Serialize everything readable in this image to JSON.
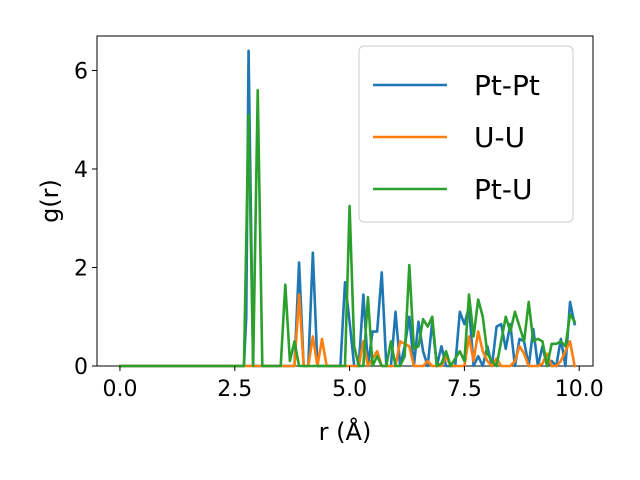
{
  "chart_data": {
    "type": "line",
    "title": "",
    "xlabel": "r (Å)",
    "ylabel": "g(r)",
    "xlim": [
      -0.5,
      10.3
    ],
    "ylim": [
      0,
      6.7
    ],
    "xticks": [
      0.0,
      2.5,
      5.0,
      7.5,
      10.0
    ],
    "xtick_labels": [
      "0.0",
      "2.5",
      "5.0",
      "7.5",
      "10.0"
    ],
    "yticks": [
      0,
      2,
      4,
      6
    ],
    "ytick_labels": [
      "0",
      "2",
      "4",
      "6"
    ],
    "grid": false,
    "legend_position": "top-right",
    "series": [
      {
        "name": "Pt-Pt",
        "color": "#1f77b4",
        "points": [
          [
            0.0,
            0
          ],
          [
            2.6,
            0
          ],
          [
            2.7,
            0
          ],
          [
            2.75,
            1.0
          ],
          [
            2.8,
            6.4
          ],
          [
            2.9,
            0
          ],
          [
            3.0,
            0
          ],
          [
            3.7,
            0
          ],
          [
            3.8,
            0
          ],
          [
            3.9,
            2.1
          ],
          [
            4.0,
            0
          ],
          [
            4.1,
            0
          ],
          [
            4.2,
            2.3
          ],
          [
            4.3,
            0
          ],
          [
            4.8,
            0
          ],
          [
            4.9,
            1.7
          ],
          [
            5.0,
            0.9
          ],
          [
            5.1,
            0
          ],
          [
            5.2,
            0
          ],
          [
            5.3,
            1.45
          ],
          [
            5.4,
            0
          ],
          [
            5.5,
            0.7
          ],
          [
            5.6,
            0.7
          ],
          [
            5.7,
            1.9
          ],
          [
            5.8,
            0
          ],
          [
            5.9,
            0
          ],
          [
            6.0,
            1.1
          ],
          [
            6.1,
            0
          ],
          [
            6.2,
            0.4
          ],
          [
            6.3,
            1.0
          ],
          [
            6.4,
            0
          ],
          [
            6.5,
            0.9
          ],
          [
            6.6,
            0.3
          ],
          [
            6.7,
            0
          ],
          [
            6.8,
            0.9
          ],
          [
            6.9,
            0
          ],
          [
            7.0,
            0.4
          ],
          [
            7.1,
            0
          ],
          [
            7.2,
            0
          ],
          [
            7.3,
            0
          ],
          [
            7.4,
            1.1
          ],
          [
            7.5,
            0.85
          ],
          [
            7.6,
            1.2
          ],
          [
            7.7,
            0
          ],
          [
            7.8,
            0.2
          ],
          [
            7.9,
            0
          ],
          [
            8.0,
            0.4
          ],
          [
            8.1,
            0
          ],
          [
            8.2,
            0.8
          ],
          [
            8.3,
            0.85
          ],
          [
            8.4,
            0.35
          ],
          [
            8.5,
            0.85
          ],
          [
            8.6,
            0
          ],
          [
            8.7,
            0.55
          ],
          [
            8.8,
            0.5
          ],
          [
            8.9,
            0
          ],
          [
            9.0,
            0.75
          ],
          [
            9.1,
            0
          ],
          [
            9.2,
            0.4
          ],
          [
            9.3,
            0
          ],
          [
            9.4,
            0.1
          ],
          [
            9.5,
            0
          ],
          [
            9.6,
            0.55
          ],
          [
            9.7,
            0
          ],
          [
            9.8,
            1.3
          ],
          [
            9.9,
            0.85
          ]
        ]
      },
      {
        "name": "U-U",
        "color": "#ff7f0e",
        "points": [
          [
            0.0,
            0
          ],
          [
            3.7,
            0
          ],
          [
            3.8,
            0
          ],
          [
            3.9,
            1.45
          ],
          [
            4.0,
            0
          ],
          [
            4.1,
            0
          ],
          [
            4.2,
            0.6
          ],
          [
            4.3,
            0
          ],
          [
            4.4,
            0.55
          ],
          [
            4.5,
            0
          ],
          [
            5.0,
            0
          ],
          [
            5.2,
            0
          ],
          [
            5.3,
            0.5
          ],
          [
            5.4,
            0
          ],
          [
            5.6,
            0.3
          ],
          [
            5.7,
            0
          ],
          [
            6.0,
            0
          ],
          [
            6.1,
            0.5
          ],
          [
            6.2,
            0.45
          ],
          [
            6.3,
            0.4
          ],
          [
            6.4,
            0
          ],
          [
            6.6,
            0
          ],
          [
            6.7,
            0.1
          ],
          [
            6.8,
            0
          ],
          [
            7.0,
            0
          ],
          [
            7.1,
            0.2
          ],
          [
            7.2,
            0
          ],
          [
            7.5,
            0
          ],
          [
            7.6,
            0.6
          ],
          [
            7.7,
            0.1
          ],
          [
            7.8,
            0.7
          ],
          [
            7.9,
            0.3
          ],
          [
            8.0,
            0.1
          ],
          [
            8.1,
            0
          ],
          [
            8.2,
            0.15
          ],
          [
            8.3,
            0
          ],
          [
            8.5,
            0
          ],
          [
            8.6,
            0.1
          ],
          [
            8.7,
            0.4
          ],
          [
            8.8,
            0.25
          ],
          [
            8.9,
            0
          ],
          [
            9.1,
            0
          ],
          [
            9.2,
            0.05
          ],
          [
            9.3,
            0.25
          ],
          [
            9.4,
            0
          ],
          [
            9.5,
            0
          ],
          [
            9.6,
            0.1
          ],
          [
            9.7,
            0.3
          ],
          [
            9.8,
            0.5
          ],
          [
            9.9,
            0
          ]
        ]
      },
      {
        "name": "Pt-U",
        "color": "#2ca02c",
        "points": [
          [
            0.0,
            0
          ],
          [
            2.6,
            0
          ],
          [
            2.7,
            0
          ],
          [
            2.8,
            5.1
          ],
          [
            2.9,
            0
          ],
          [
            3.0,
            5.6
          ],
          [
            3.1,
            0
          ],
          [
            3.5,
            0
          ],
          [
            3.6,
            1.65
          ],
          [
            3.7,
            0.1
          ],
          [
            3.8,
            0.5
          ],
          [
            3.9,
            0
          ],
          [
            4.8,
            0
          ],
          [
            4.9,
            0
          ],
          [
            5.0,
            3.25
          ],
          [
            5.1,
            0.4
          ],
          [
            5.2,
            0
          ],
          [
            5.3,
            0
          ],
          [
            5.4,
            1.4
          ],
          [
            5.5,
            0
          ],
          [
            5.6,
            0.2
          ],
          [
            5.7,
            0
          ],
          [
            5.8,
            0
          ],
          [
            5.9,
            0.5
          ],
          [
            6.0,
            0
          ],
          [
            6.1,
            0
          ],
          [
            6.2,
            0.2
          ],
          [
            6.3,
            2.05
          ],
          [
            6.4,
            0.35
          ],
          [
            6.5,
            0.4
          ],
          [
            6.6,
            0.95
          ],
          [
            6.7,
            0.8
          ],
          [
            6.8,
            1.0
          ],
          [
            6.9,
            0
          ],
          [
            7.0,
            0.05
          ],
          [
            7.1,
            0.3
          ],
          [
            7.2,
            0
          ],
          [
            7.3,
            0.15
          ],
          [
            7.4,
            0.3
          ],
          [
            7.5,
            0.1
          ],
          [
            7.6,
            1.45
          ],
          [
            7.7,
            0.6
          ],
          [
            7.8,
            1.35
          ],
          [
            7.9,
            1.0
          ],
          [
            8.0,
            0.25
          ],
          [
            8.1,
            0.1
          ],
          [
            8.2,
            0
          ],
          [
            8.3,
            0.5
          ],
          [
            8.4,
            1.0
          ],
          [
            8.5,
            0.7
          ],
          [
            8.6,
            1.1
          ],
          [
            8.7,
            0.8
          ],
          [
            8.8,
            0.5
          ],
          [
            8.9,
            1.3
          ],
          [
            9.0,
            0.5
          ],
          [
            9.1,
            0.55
          ],
          [
            9.2,
            0.5
          ],
          [
            9.3,
            0
          ],
          [
            9.4,
            0.45
          ],
          [
            9.5,
            0.45
          ],
          [
            9.6,
            0.5
          ],
          [
            9.7,
            0.4
          ],
          [
            9.8,
            1.05
          ],
          [
            9.9,
            0.9
          ]
        ]
      }
    ]
  }
}
